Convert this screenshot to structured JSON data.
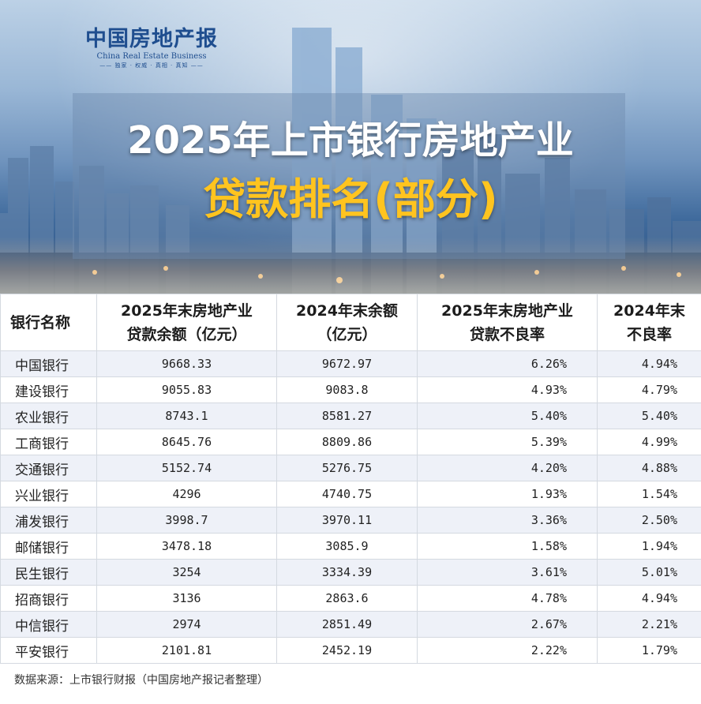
{
  "brand": {
    "name_cn": "中国房地产报",
    "name_en": "China Real Estate Business",
    "slogan": "—— 独家 · 权威 · 真相 · 真知 ——"
  },
  "title": {
    "line1": "2025年上市银行房地产业",
    "line2": "贷款排名(部分)"
  },
  "colors": {
    "title_line2": "#ffc41f",
    "brand": "#1f4e8f",
    "row_alt": "#eef1f8"
  },
  "table": {
    "headers": [
      [
        "银行名称"
      ],
      [
        "2025年末房地产业",
        "贷款余额（亿元）"
      ],
      [
        "2024年末余额",
        "（亿元）"
      ],
      [
        "2025年末房地产业",
        "贷款不良率"
      ],
      [
        "2024年末",
        "不良率"
      ]
    ],
    "rows": [
      [
        "中国银行",
        "9668.33",
        "9672.97",
        "6.26%",
        "4.94%"
      ],
      [
        "建设银行",
        "9055.83",
        "9083.8",
        "4.93%",
        "4.79%"
      ],
      [
        "农业银行",
        "8743.1",
        "8581.27",
        "5.40%",
        "5.40%"
      ],
      [
        "工商银行",
        "8645.76",
        "8809.86",
        "5.39%",
        "4.99%"
      ],
      [
        "交通银行",
        "5152.74",
        "5276.75",
        "4.20%",
        "4.88%"
      ],
      [
        "兴业银行",
        "4296",
        "4740.75",
        "1.93%",
        "1.54%"
      ],
      [
        "浦发银行",
        "3998.7",
        "3970.11",
        "3.36%",
        "2.50%"
      ],
      [
        "邮储银行",
        "3478.18",
        "3085.9",
        "1.58%",
        "1.94%"
      ],
      [
        "民生银行",
        "3254",
        "3334.39",
        "3.61%",
        "5.01%"
      ],
      [
        "招商银行",
        "3136",
        "2863.6",
        "4.78%",
        "4.94%"
      ],
      [
        "中信银行",
        "2974",
        "2851.49",
        "2.67%",
        "2.21%"
      ],
      [
        "平安银行",
        "2101.81",
        "2452.19",
        "2.22%",
        "1.79%"
      ]
    ]
  },
  "footer": {
    "source": "数据来源：上市银行财报（中国房地产报记者整理）"
  }
}
